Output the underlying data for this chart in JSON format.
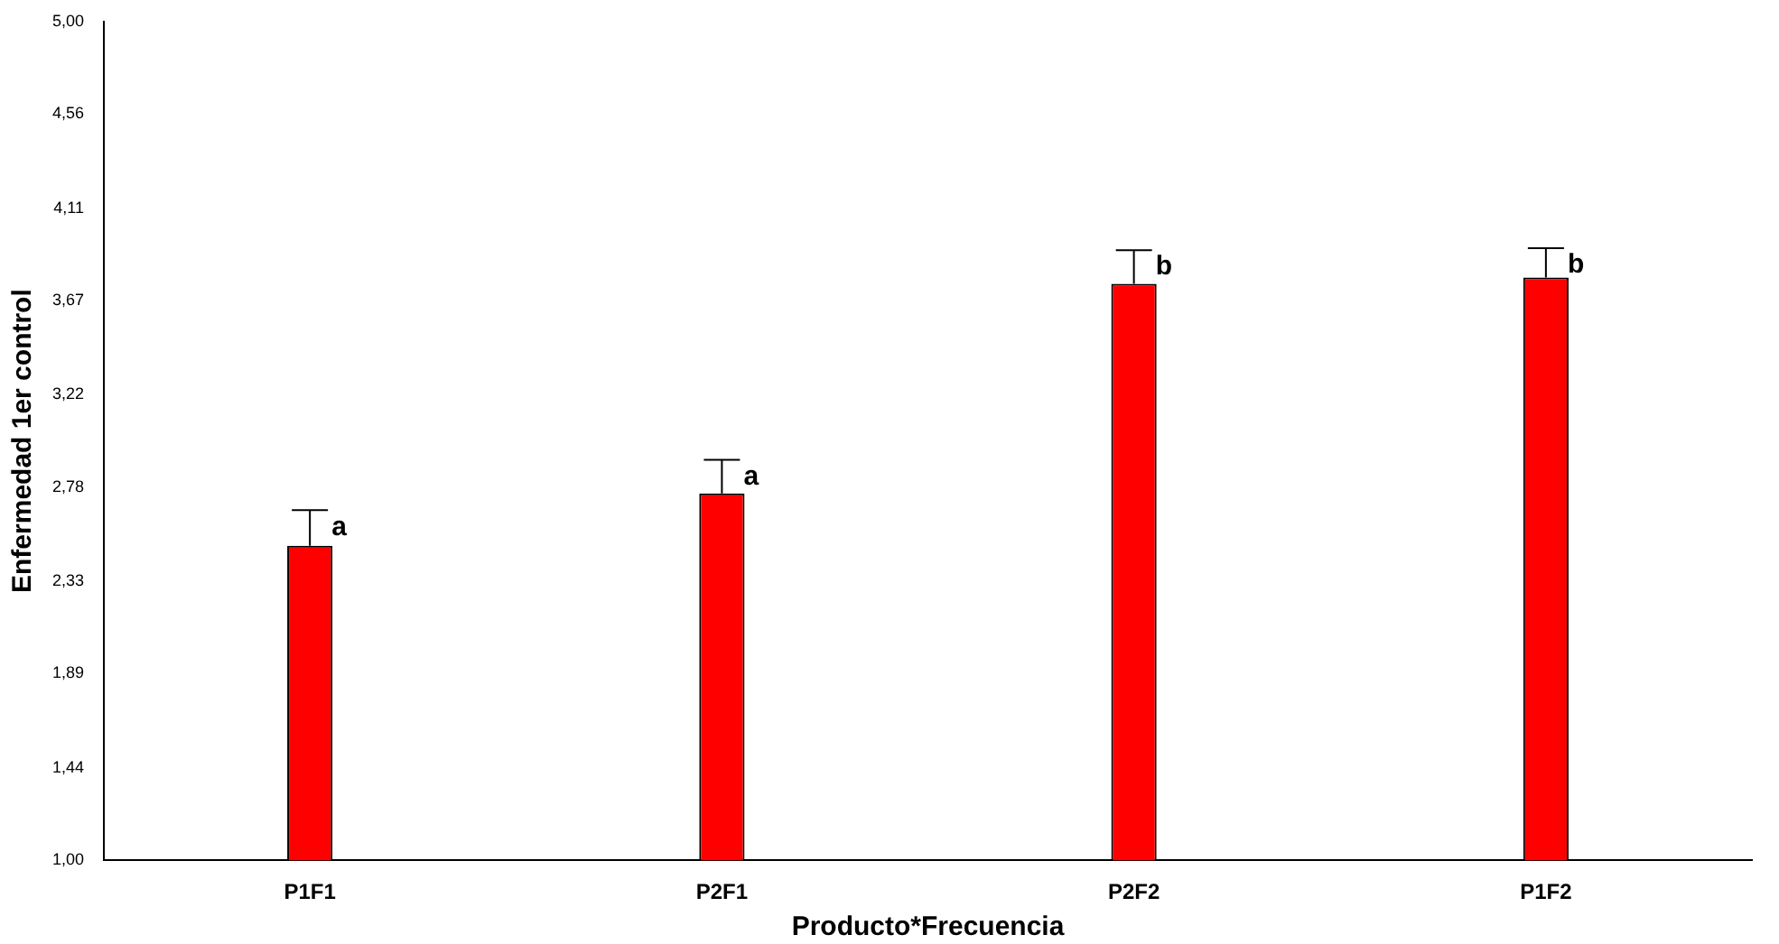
{
  "chart_data": {
    "type": "bar",
    "xlabel": "Producto*Frecuencia",
    "ylabel": "Enfermedad 1er control",
    "categories": [
      "P1F1",
      "P2F1",
      "P2F2",
      "P1F2"
    ],
    "values": [
      2.5,
      2.75,
      3.75,
      3.78
    ],
    "color": "#ff0000",
    "errors": [
      [
        2.5,
        2.67
      ],
      [
        2.75,
        2.91
      ],
      [
        3.75,
        3.91
      ],
      [
        3.78,
        3.92
      ]
    ],
    "ylim": [
      1,
      5
    ],
    "yticks": [
      {
        "value": 1,
        "label": "1,00"
      },
      {
        "value": 1.44,
        "label": "1,44"
      },
      {
        "value": 1.89,
        "label": "1,89"
      },
      {
        "value": 2.33,
        "label": "2,33"
      },
      {
        "value": 2.78,
        "label": "2,78"
      },
      {
        "value": 3.22,
        "label": "3,22"
      },
      {
        "value": 3.67,
        "label": "3,67"
      },
      {
        "value": 4.11,
        "label": "4,11"
      },
      {
        "value": 4.56,
        "label": "4,56"
      },
      {
        "value": 5,
        "label": "5,00"
      }
    ],
    "annotations": [
      {
        "text": "a",
        "x": "P1F1",
        "y": 2.67
      },
      {
        "text": "a",
        "x": "P2F1",
        "y": 2.91
      },
      {
        "text": "b",
        "x": "P2F2",
        "y": 3.91
      },
      {
        "text": "b",
        "x": "P1F2",
        "y": 3.92
      }
    ]
  }
}
